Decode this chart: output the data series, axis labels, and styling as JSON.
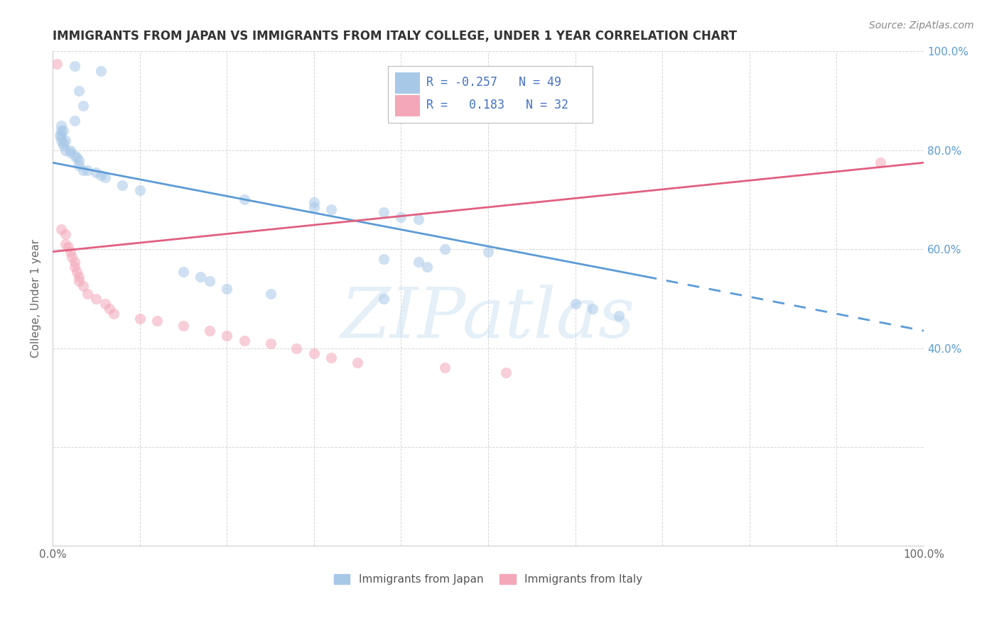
{
  "title": "IMMIGRANTS FROM JAPAN VS IMMIGRANTS FROM ITALY COLLEGE, UNDER 1 YEAR CORRELATION CHART",
  "source": "Source: ZipAtlas.com",
  "ylabel": "College, Under 1 year",
  "xlim": [
    0,
    1
  ],
  "ylim": [
    0,
    1
  ],
  "color_japan": "#a8c8e8",
  "color_italy": "#f4a7b9",
  "color_japan_line": "#5b9bd5",
  "color_italy_line": "#e06080",
  "japan_x": [
    0.025,
    0.055,
    0.03,
    0.035,
    0.025,
    0.01,
    0.01,
    0.012,
    0.01,
    0.008,
    0.01,
    0.015,
    0.012,
    0.012,
    0.015,
    0.02,
    0.02,
    0.025,
    0.028,
    0.03,
    0.03,
    0.035,
    0.04,
    0.05,
    0.055,
    0.06,
    0.08,
    0.1,
    0.22,
    0.3,
    0.3,
    0.32,
    0.38,
    0.4,
    0.42,
    0.45,
    0.5,
    0.38,
    0.42,
    0.43,
    0.15,
    0.17,
    0.18,
    0.2,
    0.25,
    0.38,
    0.6,
    0.62,
    0.65
  ],
  "japan_y": [
    0.97,
    0.96,
    0.92,
    0.89,
    0.86,
    0.85,
    0.84,
    0.84,
    0.83,
    0.83,
    0.82,
    0.82,
    0.815,
    0.81,
    0.8,
    0.8,
    0.795,
    0.79,
    0.785,
    0.78,
    0.77,
    0.76,
    0.76,
    0.755,
    0.75,
    0.745,
    0.73,
    0.72,
    0.7,
    0.695,
    0.685,
    0.68,
    0.675,
    0.665,
    0.66,
    0.6,
    0.595,
    0.58,
    0.575,
    0.565,
    0.555,
    0.545,
    0.535,
    0.52,
    0.51,
    0.5,
    0.49,
    0.48,
    0.465
  ],
  "italy_x": [
    0.005,
    0.01,
    0.015,
    0.015,
    0.018,
    0.02,
    0.022,
    0.025,
    0.025,
    0.028,
    0.03,
    0.03,
    0.035,
    0.04,
    0.05,
    0.06,
    0.065,
    0.07,
    0.1,
    0.12,
    0.15,
    0.18,
    0.2,
    0.22,
    0.25,
    0.28,
    0.3,
    0.32,
    0.35,
    0.45,
    0.52,
    0.95
  ],
  "italy_y": [
    0.975,
    0.64,
    0.63,
    0.61,
    0.605,
    0.595,
    0.585,
    0.575,
    0.565,
    0.555,
    0.545,
    0.535,
    0.525,
    0.51,
    0.5,
    0.49,
    0.48,
    0.47,
    0.46,
    0.455,
    0.445,
    0.435,
    0.425,
    0.415,
    0.41,
    0.4,
    0.39,
    0.38,
    0.37,
    0.36,
    0.35,
    0.775
  ],
  "japan_line_x0": 0.0,
  "japan_line_y0": 0.775,
  "japan_line_x1": 0.68,
  "japan_line_y1": 0.545,
  "japan_line_ext_x1": 1.0,
  "japan_line_ext_y1": 0.435,
  "italy_line_x0": 0.0,
  "italy_line_y0": 0.595,
  "italy_line_x1": 1.0,
  "italy_line_y1": 0.775,
  "watermark": "ZIPatlas",
  "legend_r1_text": "R = -0.257   N = 49",
  "legend_r2_text": "R =   0.183   N = 32"
}
